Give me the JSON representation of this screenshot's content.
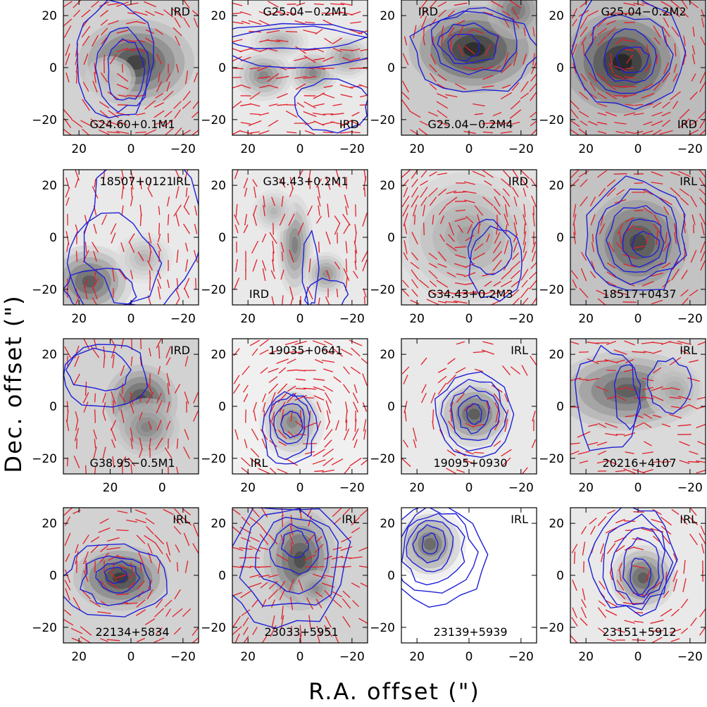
{
  "figure": {
    "xlabel": "R.A. offset (\")",
    "ylabel": "Dec. offset (\")",
    "colors": {
      "contour": "#1f1fd6",
      "vector": "#e0202a",
      "frame": "#000000"
    }
  },
  "chart_data": [
    {
      "type": "heatmap",
      "name": "G24.60+0.1M1",
      "class": "IRD",
      "xticks": [
        "20",
        "0",
        "−20"
      ],
      "yticks": [
        "20",
        "0",
        "−20"
      ],
      "blobs": [
        {
          "x": -2,
          "y": 2,
          "sx": 16,
          "sy": 12,
          "a": 0.82
        },
        {
          "x": 8,
          "y": -4,
          "sx": 7,
          "sy": 6,
          "a": 0.12
        }
      ],
      "bg": 0.3,
      "contours": [
        {
          "x": 2,
          "y": -1,
          "sx": 7,
          "sy": 12
        },
        {
          "x": 3,
          "y": 0,
          "sx": 10,
          "sy": 16
        },
        {
          "x": 6,
          "y": 2,
          "sx": 15,
          "sy": 22
        }
      ],
      "vec": {
        "mode": "circ",
        "cx": 0,
        "cy": 0,
        "dens": 0.55
      }
    },
    {
      "type": "heatmap",
      "name": "G25.04−0.2M1",
      "class": "IRD",
      "xticks": [
        "20",
        "0",
        "−20"
      ],
      "yticks": [
        "20",
        "0",
        "−20"
      ],
      "blobs": [
        {
          "x": 14,
          "y": -3,
          "sx": 8,
          "sy": 7,
          "a": 0.55
        },
        {
          "x": -5,
          "y": -2,
          "sx": 7,
          "sy": 6,
          "a": 0.55
        },
        {
          "x": -18,
          "y": 4,
          "sx": 7,
          "sy": 6,
          "a": 0.45
        },
        {
          "x": 8,
          "y": 10,
          "sx": 8,
          "sy": 5,
          "a": 0.35
        }
      ],
      "bg": 0.15,
      "contours": [
        {
          "x": 2,
          "y": 12,
          "sx": 28,
          "sy": 5
        },
        {
          "x": 0,
          "y": 8,
          "sx": 30,
          "sy": 8
        },
        {
          "x": -12,
          "y": -15,
          "sx": 14,
          "sy": 10
        }
      ],
      "vec": {
        "mode": "horiz",
        "cx": 0,
        "cy": 0,
        "dens": 0.55
      }
    },
    {
      "type": "heatmap",
      "name": "G25.04−0.2M4",
      "class": "IRD",
      "xticks": [
        "20",
        "0",
        "−20"
      ],
      "yticks": [
        "20",
        "0",
        "−20"
      ],
      "blobs": [
        {
          "x": -2,
          "y": 7,
          "sx": 18,
          "sy": 12,
          "a": 0.9
        },
        {
          "x": -18,
          "y": 22,
          "sx": 8,
          "sy": 8,
          "a": 0.5
        }
      ],
      "bg": 0.35,
      "contours": [
        {
          "x": 2,
          "y": 8,
          "sx": 6,
          "sy": 5
        },
        {
          "x": 0,
          "y": 9,
          "sx": 11,
          "sy": 8
        },
        {
          "x": -3,
          "y": 10,
          "sx": 17,
          "sy": 12
        },
        {
          "x": -2,
          "y": 6,
          "sx": 24,
          "sy": 16
        }
      ],
      "vec": {
        "mode": "circ",
        "cx": -3,
        "cy": 10,
        "dens": 0.45
      }
    },
    {
      "type": "heatmap",
      "name": "G25.04−0.2M2",
      "class": "IRD",
      "xticks": [
        "20",
        "0",
        "−20"
      ],
      "yticks": [
        "20",
        "0",
        "−20"
      ],
      "blobs": [
        {
          "x": 6,
          "y": 2,
          "sx": 16,
          "sy": 14,
          "a": 0.85
        }
      ],
      "bg": 0.45,
      "contours": [
        {
          "x": 2,
          "y": 3,
          "sx": 6,
          "sy": 5
        },
        {
          "x": 3,
          "y": 4,
          "sx": 11,
          "sy": 10
        },
        {
          "x": 4,
          "y": 5,
          "sx": 16,
          "sy": 15
        },
        {
          "x": 5,
          "y": 6,
          "sx": 22,
          "sy": 22
        }
      ],
      "vec": {
        "mode": "circ",
        "cx": 4,
        "cy": 4,
        "dens": 0.6
      }
    },
    {
      "type": "heatmap",
      "name": "18507+0121",
      "class": "IRL",
      "xticks": [
        "20",
        "0",
        "−20"
      ],
      "yticks": [
        "20",
        "0",
        "−20"
      ],
      "blobs": [
        {
          "x": 16,
          "y": -17,
          "sx": 12,
          "sy": 10,
          "a": 0.8
        },
        {
          "x": -5,
          "y": -8,
          "sx": 8,
          "sy": 7,
          "a": 0.3
        }
      ],
      "bg": 0.15,
      "contours": [
        {
          "x": 12,
          "y": -20,
          "sx": 14,
          "sy": 8
        },
        {
          "x": 8,
          "y": -10,
          "sx": 18,
          "sy": 18
        },
        {
          "x": -5,
          "y": 2,
          "sx": 22,
          "sy": 30
        }
      ],
      "vec": {
        "mode": "vert",
        "cx": 0,
        "cy": 0,
        "dens": 0.4
      }
    },
    {
      "type": "heatmap",
      "name": "G34.43+0.2M1",
      "class": "IRD",
      "xticks": [
        "20",
        "0",
        "−20"
      ],
      "yticks": [
        "20",
        "0",
        "−20"
      ],
      "blobs": [
        {
          "x": 2,
          "y": -3,
          "sx": 5,
          "sy": 14,
          "a": 0.6
        },
        {
          "x": -10,
          "y": -14,
          "sx": 6,
          "sy": 6,
          "a": 0.5
        },
        {
          "x": 10,
          "y": 10,
          "sx": 6,
          "sy": 6,
          "a": 0.3
        }
      ],
      "bg": 0.15,
      "contours": [
        {
          "x": -4,
          "y": -12,
          "sx": 3,
          "sy": 14
        },
        {
          "x": -10,
          "y": -22,
          "sx": 8,
          "sy": 6
        }
      ],
      "vec": {
        "mode": "vert",
        "cx": 0,
        "cy": 0,
        "dens": 0.5
      }
    },
    {
      "type": "heatmap",
      "name": "G34.43+0.2M3",
      "class": "IRD",
      "xticks": [
        "20",
        "0",
        "−20"
      ],
      "yticks": [
        "20",
        "0",
        "−20"
      ],
      "blobs": [
        {
          "x": 2,
          "y": 4,
          "sx": 9,
          "sy": 8,
          "a": 0.95
        },
        {
          "x": 0,
          "y": 0,
          "sx": 20,
          "sy": 18,
          "a": 0.35
        }
      ],
      "bg": 0.2,
      "contours": [
        {
          "x": -8,
          "y": -4,
          "sx": 8,
          "sy": 10
        },
        {
          "x": -10,
          "y": -10,
          "sx": 10,
          "sy": 14
        }
      ],
      "vec": {
        "mode": "circ",
        "cx": 2,
        "cy": 4,
        "dens": 0.7
      }
    },
    {
      "type": "heatmap",
      "name": "18517+0437",
      "class": "IRL",
      "xticks": [
        "20",
        "0",
        "−20"
      ],
      "yticks": [
        "20",
        "0",
        "−20"
      ],
      "blobs": [
        {
          "x": 0,
          "y": -2,
          "sx": 14,
          "sy": 14,
          "a": 0.7
        }
      ],
      "bg": 0.4,
      "contours": [
        {
          "x": -3,
          "y": -3,
          "sx": 5,
          "sy": 5
        },
        {
          "x": -2,
          "y": -2,
          "sx": 8,
          "sy": 9
        },
        {
          "x": -1,
          "y": -1,
          "sx": 12,
          "sy": 13
        },
        {
          "x": 0,
          "y": 0,
          "sx": 16,
          "sy": 17
        },
        {
          "x": 1,
          "y": 1,
          "sx": 20,
          "sy": 22
        }
      ],
      "vec": {
        "mode": "circ",
        "cx": 0,
        "cy": 0,
        "dens": 0.45
      }
    },
    {
      "type": "heatmap",
      "name": "G38.95−0.5M1",
      "class": "IRD",
      "xticks": [
        "20",
        "0"
      ],
      "yticks": [
        "20",
        "0",
        "−20"
      ],
      "blobs": [
        {
          "x": 8,
          "y": 2,
          "sx": 10,
          "sy": 10,
          "a": 0.8
        },
        {
          "x": 6,
          "y": -8,
          "sx": 9,
          "sy": 8,
          "a": 0.45
        }
      ],
      "bg": 0.3,
      "contours": [
        {
          "x": 24,
          "y": 14,
          "sx": 12,
          "sy": 8
        },
        {
          "x": 22,
          "y": 12,
          "sx": 16,
          "sy": 12
        }
      ],
      "vec": {
        "mode": "vert",
        "cx": 0,
        "cy": 0,
        "dens": 0.4
      }
    },
    {
      "type": "heatmap",
      "name": "19035+0641",
      "class": "IRL",
      "xticks": [
        "20",
        "0",
        "−20"
      ],
      "yticks": [
        "20",
        "0",
        "−20"
      ],
      "blobs": [
        {
          "x": 3,
          "y": -6,
          "sx": 9,
          "sy": 10,
          "a": 0.6
        }
      ],
      "bg": 0.1,
      "contours": [
        {
          "x": 3,
          "y": -7,
          "sx": 4,
          "sy": 5
        },
        {
          "x": 4,
          "y": -7,
          "sx": 6,
          "sy": 8
        },
        {
          "x": 4,
          "y": -8,
          "sx": 8,
          "sy": 12
        },
        {
          "x": 4,
          "y": -9,
          "sx": 10,
          "sy": 14
        }
      ],
      "vec": {
        "mode": "circ",
        "cx": -2,
        "cy": -4,
        "dens": 0.55
      }
    },
    {
      "type": "heatmap",
      "name": "19095+0930",
      "class": "IRL",
      "xticks": [
        "20",
        "0",
        "−20"
      ],
      "yticks": [
        "20",
        "0",
        "−20"
      ],
      "blobs": [
        {
          "x": -2,
          "y": -3,
          "sx": 10,
          "sy": 9,
          "a": 0.8
        }
      ],
      "bg": 0.15,
      "contours": [
        {
          "x": -2,
          "y": -3,
          "sx": 3,
          "sy": 4
        },
        {
          "x": -2,
          "y": -3,
          "sx": 6,
          "sy": 7
        },
        {
          "x": -2,
          "y": -3,
          "sx": 9,
          "sy": 10
        },
        {
          "x": -2,
          "y": -3,
          "sx": 12,
          "sy": 13
        },
        {
          "x": -2,
          "y": -3,
          "sx": 15,
          "sy": 16
        }
      ],
      "vec": {
        "mode": "circ",
        "cx": -2,
        "cy": -3,
        "dens": 0.22
      }
    },
    {
      "type": "heatmap",
      "name": "20216+4107",
      "class": "IRL",
      "xticks": [
        "20",
        "0",
        "−20"
      ],
      "yticks": [
        "20",
        "0",
        "−20"
      ],
      "blobs": [
        {
          "x": 4,
          "y": 6,
          "sx": 20,
          "sy": 11,
          "a": 0.7
        },
        {
          "x": -14,
          "y": 6,
          "sx": 8,
          "sy": 8,
          "a": 0.3
        }
      ],
      "bg": 0.25,
      "contours": [
        {
          "x": 4,
          "y": 4,
          "sx": 5,
          "sy": 12
        },
        {
          "x": -12,
          "y": 8,
          "sx": 8,
          "sy": 10
        },
        {
          "x": 12,
          "y": 2,
          "sx": 12,
          "sy": 20
        }
      ],
      "vec": {
        "mode": "horiz",
        "cx": 0,
        "cy": 0,
        "dens": 0.45
      }
    },
    {
      "type": "heatmap",
      "name": "22134+5834",
      "class": "IRL",
      "xticks": [
        "20",
        "0",
        "−20"
      ],
      "yticks": [
        "20",
        "0",
        "−20"
      ],
      "blobs": [
        {
          "x": 4,
          "y": -1,
          "sx": 13,
          "sy": 9,
          "a": 0.85
        }
      ],
      "bg": 0.3,
      "contours": [
        {
          "x": 6,
          "y": 0,
          "sx": 4,
          "sy": 3
        },
        {
          "x": 5,
          "y": -1,
          "sx": 8,
          "sy": 6
        },
        {
          "x": 6,
          "y": -2,
          "sx": 13,
          "sy": 9
        },
        {
          "x": 6,
          "y": -2,
          "sx": 20,
          "sy": 14
        }
      ],
      "vec": {
        "mode": "circ",
        "cx": 4,
        "cy": 2,
        "dens": 0.45
      }
    },
    {
      "type": "heatmap",
      "name": "23033+5951",
      "class": "IRL",
      "xticks": [
        "20",
        "0",
        "−20"
      ],
      "yticks": [
        "20",
        "0",
        "−20"
      ],
      "blobs": [
        {
          "x": 0,
          "y": 6,
          "sx": 10,
          "sy": 14,
          "a": 0.75
        },
        {
          "x": -6,
          "y": -5,
          "sx": 6,
          "sy": 5,
          "a": 0.4
        }
      ],
      "bg": 0.3,
      "contours": [
        {
          "x": 2,
          "y": 12,
          "sx": 5,
          "sy": 5
        },
        {
          "x": 2,
          "y": 10,
          "sx": 9,
          "sy": 9
        },
        {
          "x": 3,
          "y": 8,
          "sx": 14,
          "sy": 14
        },
        {
          "x": 4,
          "y": 6,
          "sx": 19,
          "sy": 19
        },
        {
          "x": 5,
          "y": 4,
          "sx": 24,
          "sy": 24
        }
      ],
      "vec": {
        "mode": "radial",
        "cx": 2,
        "cy": 4,
        "dens": 0.5
      }
    },
    {
      "type": "heatmap",
      "name": "23139+5939",
      "class": "IRL",
      "xticks": [
        "20",
        "0",
        "−20"
      ],
      "yticks": [
        "20",
        "0",
        "−20"
      ],
      "blobs": [
        {
          "x": 15,
          "y": 12,
          "sx": 10,
          "sy": 10,
          "a": 0.85
        }
      ],
      "bg": 0.0,
      "contours": [
        {
          "x": 15,
          "y": 12,
          "sx": 3,
          "sy": 4
        },
        {
          "x": 15,
          "y": 12,
          "sx": 6,
          "sy": 7
        },
        {
          "x": 15,
          "y": 11,
          "sx": 9,
          "sy": 10
        },
        {
          "x": 14,
          "y": 10,
          "sx": 12,
          "sy": 13
        },
        {
          "x": 13,
          "y": 9,
          "sx": 15,
          "sy": 16
        },
        {
          "x": 12,
          "y": 8,
          "sx": 18,
          "sy": 19
        }
      ],
      "vec": {
        "mode": "none",
        "cx": 0,
        "cy": 0,
        "dens": 0
      }
    },
    {
      "type": "heatmap",
      "name": "23151+5912",
      "class": "IRL",
      "xticks": [
        "20",
        "0",
        "−20"
      ],
      "yticks": [
        "20",
        "0",
        "−20"
      ],
      "blobs": [
        {
          "x": -2,
          "y": -1,
          "sx": 9,
          "sy": 9,
          "a": 0.8
        }
      ],
      "bg": 0.15,
      "contours": [
        {
          "x": -1,
          "y": 0,
          "sx": 4,
          "sy": 7
        },
        {
          "x": -1,
          "y": 3,
          "sx": 7,
          "sy": 11
        },
        {
          "x": 0,
          "y": 4,
          "sx": 10,
          "sy": 14
        },
        {
          "x": 1,
          "y": 5,
          "sx": 13,
          "sy": 17
        },
        {
          "x": 2,
          "y": 6,
          "sx": 16,
          "sy": 20
        }
      ],
      "vec": {
        "mode": "circ",
        "cx": 0,
        "cy": 2,
        "dens": 0.5
      }
    }
  ]
}
